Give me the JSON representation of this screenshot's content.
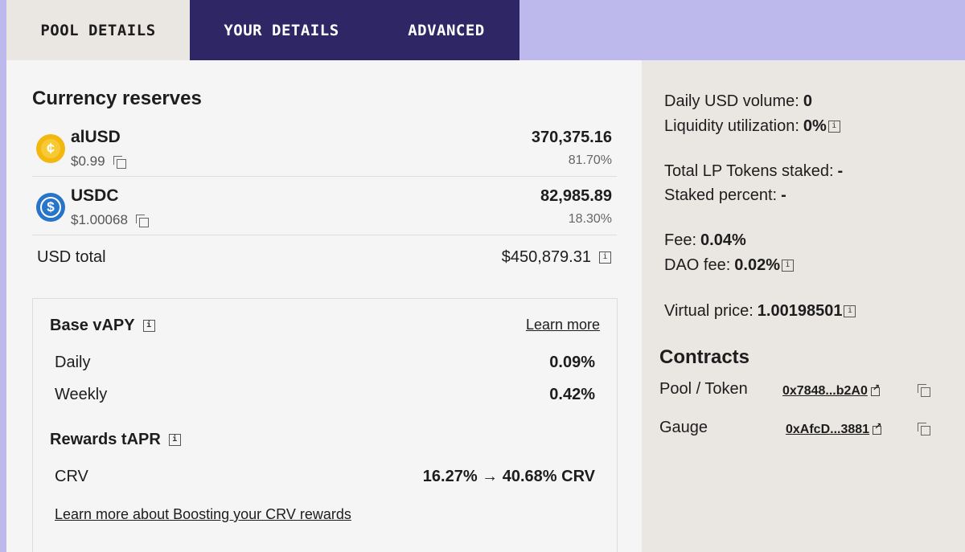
{
  "tabs": [
    {
      "label": "POOL DETAILS",
      "active": true
    },
    {
      "label": "YOUR DETAILS",
      "active": false
    },
    {
      "label": "ADVANCED",
      "active": false
    }
  ],
  "reserves": {
    "title": "Currency reserves",
    "coins": [
      {
        "symbol": "alUSD",
        "price": "$0.99",
        "amount": "370,375.16",
        "percent": "81.70%",
        "icon": "alusd-coin-icon",
        "color": "#f2b80d"
      },
      {
        "symbol": "USDC",
        "price": "$1.00068",
        "amount": "82,985.89",
        "percent": "18.30%",
        "icon": "usdc-coin-icon",
        "color": "#2775ca"
      }
    ],
    "usd_total_label": "USD total",
    "usd_total_value": "$450,879.31"
  },
  "apy": {
    "base_title": "Base vAPY",
    "learn_more": "Learn more",
    "rows": [
      {
        "label": "Daily",
        "value": "0.09%"
      },
      {
        "label": "Weekly",
        "value": "0.42%"
      }
    ],
    "rewards_title": "Rewards tAPR",
    "crv_label": "CRV",
    "crv_value": "16.27% → 40.68% CRV",
    "boost_link": "Learn more about Boosting your CRV rewards"
  },
  "stats": {
    "daily_volume_label": "Daily USD volume:",
    "daily_volume_value": "0",
    "liquidity_label": "Liquidity utilization:",
    "liquidity_value": "0%",
    "lp_staked_label": "Total LP Tokens staked:",
    "lp_staked_value": "-",
    "staked_percent_label": "Staked percent:",
    "staked_percent_value": "-",
    "fee_label": "Fee:",
    "fee_value": "0.04%",
    "dao_fee_label": "DAO fee:",
    "dao_fee_value": "0.02%",
    "virtual_price_label": "Virtual price:",
    "virtual_price_value": "1.00198501"
  },
  "contracts": {
    "title": "Contracts",
    "items": [
      {
        "label": "Pool / Token",
        "address": "0x7848...b2A0"
      },
      {
        "label": "Gauge",
        "address": "0xAfcD...3881"
      }
    ]
  },
  "colors": {
    "background": "#bdb9ec",
    "tab_dark": "#2f2765",
    "panel_left": "#f5f5f5",
    "panel_right": "#eae6e2"
  }
}
